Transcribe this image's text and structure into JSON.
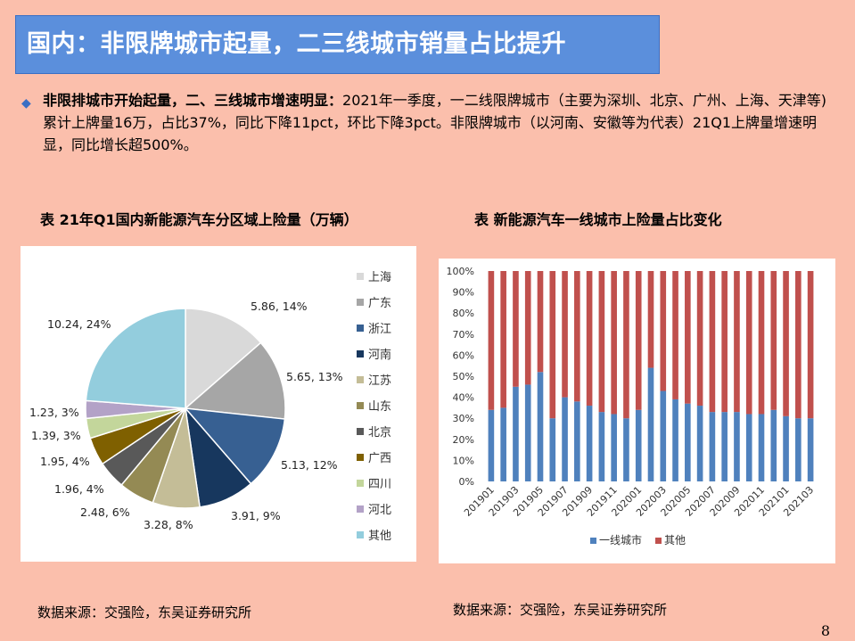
{
  "header": {
    "title": "国内：非限牌城市起量，二三线城市销量占比提升"
  },
  "bullet": {
    "bold": "非限排城市开始起量，二、三线城市增速明显：",
    "text": "2021年一季度，一二线限牌城市（主要为深圳、北京、广州、上海、天津等)累计上牌量16万，占比37%，同比下降11pct，环比下降3pct。非限牌城市（以河南、安徽等为代表）21Q1上牌量增速明显，同比增长超500%。"
  },
  "left": {
    "title": "表  21年Q1国内新能源汽车分区域上险量（万辆）",
    "source": "数据来源：交强险，东吴证券研究所"
  },
  "right": {
    "title": "表  新能源汽车一线城市上险量占比变化",
    "source": "数据来源：交强险，东吴证券研究所"
  },
  "page": {
    "number": "8"
  },
  "colors": {
    "first_tier": "#4f81bd",
    "other": "#c0504d"
  },
  "chart_data": [
    {
      "type": "pie",
      "title": "表  21年Q1国内新能源汽车分区域上险量（万辆）",
      "legend": "right",
      "slices": [
        {
          "name": "上海",
          "value": 5.86,
          "pct": 14,
          "label": "5.86, 14%",
          "color": "#d9d9d9"
        },
        {
          "name": "广东",
          "value": 5.65,
          "pct": 13,
          "label": "5.65, 13%",
          "color": "#a6a6a6"
        },
        {
          "name": "浙江",
          "value": 5.13,
          "pct": 12,
          "label": "5.13, 12%",
          "color": "#376092"
        },
        {
          "name": "河南",
          "value": 3.91,
          "pct": 9,
          "label": "3.91, 9%",
          "color": "#17375e"
        },
        {
          "name": "江苏",
          "value": 3.28,
          "pct": 8,
          "label": "3.28, 8%",
          "color": "#c4bd97"
        },
        {
          "name": "山东",
          "value": 2.48,
          "pct": 6,
          "label": "2.48, 6%",
          "color": "#948a54"
        },
        {
          "name": "北京",
          "value": 1.96,
          "pct": 4,
          "label": "1.96, 4%",
          "color": "#595959"
        },
        {
          "name": "广西",
          "value": 1.95,
          "pct": 4,
          "label": "1.95, 4%",
          "color": "#7f6000"
        },
        {
          "name": "四川",
          "value": 1.39,
          "pct": 3,
          "label": "1.39, 3%",
          "color": "#c3d69b"
        },
        {
          "name": "河北",
          "value": 1.23,
          "pct": 3,
          "label": "1.23, 3%",
          "color": "#b3a2c7"
        },
        {
          "name": "其他",
          "value": 10.24,
          "pct": 24,
          "label": "10.24, 24%",
          "color": "#93cddd"
        }
      ]
    },
    {
      "type": "bar",
      "stacked": true,
      "title": "表  新能源汽车一线城市上险量占比变化",
      "ylim": [
        0,
        100
      ],
      "yticks": [
        "0%",
        "10%",
        "20%",
        "30%",
        "40%",
        "50%",
        "60%",
        "70%",
        "80%",
        "90%",
        "100%"
      ],
      "categories": [
        "201901",
        "201902",
        "201903",
        "201904",
        "201905",
        "201906",
        "201907",
        "201908",
        "201909",
        "201910",
        "201911",
        "201912",
        "202001",
        "202002",
        "202003",
        "202004",
        "202005",
        "202006",
        "202007",
        "202008",
        "202009",
        "202010",
        "202011",
        "202012",
        "202101",
        "202102",
        "202103"
      ],
      "x_tick_labels": [
        "201901",
        "201903",
        "201905",
        "201907",
        "201909",
        "201911",
        "202001",
        "202003",
        "202005",
        "202007",
        "202009",
        "202011",
        "202101",
        "202103"
      ],
      "series": [
        {
          "name": "一线城市",
          "values": [
            34,
            35,
            45,
            46,
            52,
            30,
            40,
            38,
            36,
            33,
            32,
            30,
            34,
            54,
            43,
            39,
            37,
            36,
            33,
            33,
            33,
            32,
            32,
            34,
            31,
            30,
            30
          ]
        },
        {
          "name": "其他",
          "values": [
            66,
            65,
            55,
            54,
            48,
            70,
            60,
            62,
            64,
            67,
            68,
            70,
            66,
            46,
            57,
            61,
            63,
            64,
            67,
            67,
            67,
            68,
            68,
            66,
            69,
            70,
            70
          ]
        }
      ],
      "legend": "bottom",
      "grid": false
    }
  ]
}
